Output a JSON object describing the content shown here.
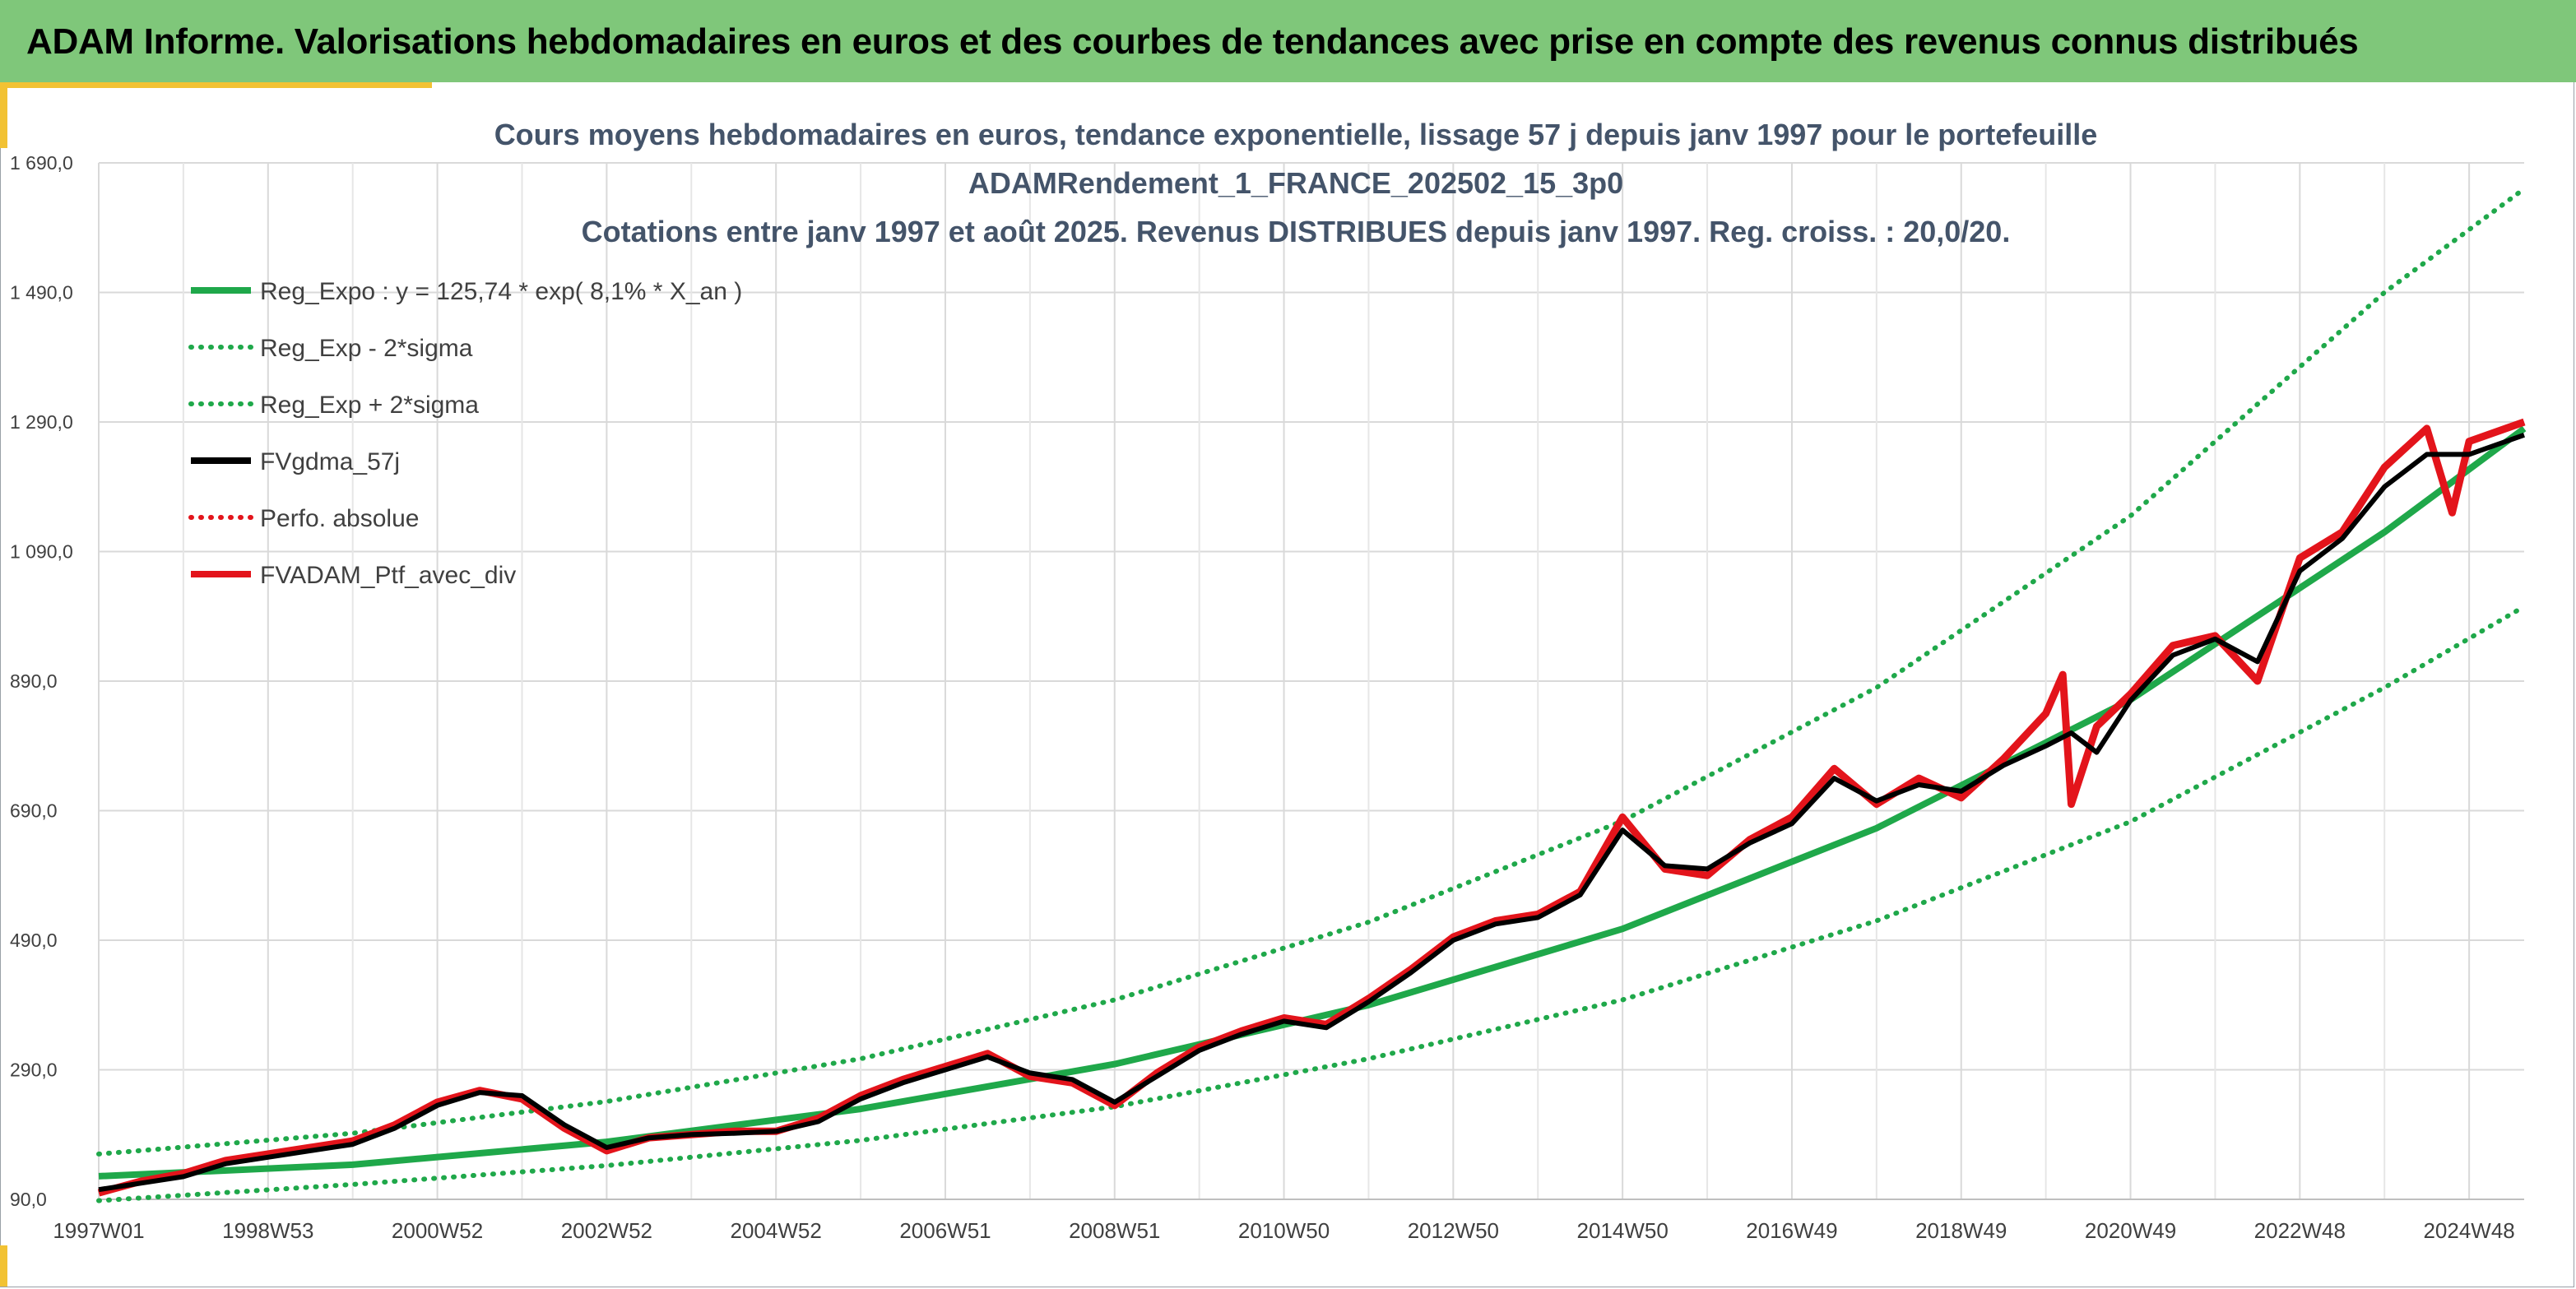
{
  "header": {
    "title": "ADAM Informe. Valorisations hebdomadaires en euros et des courbes de tendances avec prise en compte des revenus connus distribués"
  },
  "colors": {
    "header_bg": "#7fc77a",
    "accent": "#f2c233",
    "trend_green": "#1fa84a",
    "smooth_black": "#000000",
    "portfolio_red": "#e3141b"
  },
  "chart_data": {
    "type": "line",
    "title_lines": [
      "Cours moyens hebdomadaires en euros, tendance exponentielle, lissage 57 j depuis janv 1997 pour le portefeuille",
      "ADAMRendement_1_FRANCE_202502_15_3p0",
      "Cotations entre janv 1997 et août 2025. Revenus DISTRIBUES depuis janv 1997. Reg. croiss. : 20,0/20."
    ],
    "ylim": [
      90,
      1690
    ],
    "y_ticks": [
      "90,0",
      "290,0",
      "490,0",
      "690,0",
      "890,0",
      "1 090,0",
      "1 290,0",
      "1 490,0",
      "1 690,0"
    ],
    "y_tick_values": [
      90,
      290,
      490,
      690,
      890,
      1090,
      1290,
      1490,
      1690
    ],
    "x_range_years": [
      1997.0,
      2025.65
    ],
    "x_ticks": [
      "1997W01",
      "1998W53",
      "2000W52",
      "2002W52",
      "2004W52",
      "2006W51",
      "2008W51",
      "2010W50",
      "2012W50",
      "2014W50",
      "2016W49",
      "2018W49",
      "2020W49",
      "2022W48",
      "2024W48"
    ],
    "x_tick_years": [
      1997.0,
      1999.0,
      2001.0,
      2003.0,
      2005.0,
      2007.0,
      2009.0,
      2011.0,
      2013.0,
      2015.0,
      2017.0,
      2019.0,
      2021.0,
      2023.0,
      2025.0
    ],
    "legend": [
      {
        "label": "Reg_Expo : y = 125,74 * exp( 8,1% *  X_an )",
        "color": "#1fa84a",
        "style": "solid"
      },
      {
        "label": "Reg_Exp - 2*sigma",
        "color": "#1fa84a",
        "style": "dotted"
      },
      {
        "label": "Reg_Exp + 2*sigma",
        "color": "#1fa84a",
        "style": "dotted"
      },
      {
        "label": "FVgdma_57j",
        "color": "#000000",
        "style": "solid"
      },
      {
        "label": "Perfo. absolue",
        "color": "#e3141b",
        "style": "dotted"
      },
      {
        "label": "FVADAM_Ptf_avec_div",
        "color": "#e3141b",
        "style": "solid"
      }
    ],
    "series": [
      {
        "name": "Reg_Expo : y = 125,74 * exp( 8,1% *  X_an )",
        "x": [
          1997.0,
          2000.0,
          2003.0,
          2006.0,
          2009.0,
          2012.0,
          2015.0,
          2018.0,
          2021.0,
          2024.0,
          2025.65
        ],
        "values": [
          125.7,
          143.5,
          178.8,
          229.5,
          298.8,
          389.9,
          507.5,
          663.0,
          861.2,
          1120.0,
          1280.0
        ]
      },
      {
        "name": "Reg_Exp - 2*sigma",
        "x": [
          1997.0,
          2000.0,
          2003.0,
          2006.0,
          2009.0,
          2012.0,
          2015.0,
          2018.0,
          2021.0,
          2024.0,
          2025.65
        ],
        "values": [
          88.0,
          113.0,
          142.0,
          181.0,
          233.0,
          307.0,
          398.0,
          520.0,
          673.0,
          880.0,
          1005.0
        ]
      },
      {
        "name": "Reg_Exp + 2*sigma",
        "x": [
          1997.0,
          2000.0,
          2003.0,
          2006.0,
          2009.0,
          2012.0,
          2015.0,
          2018.0,
          2021.0,
          2024.0,
          2025.65
        ],
        "values": [
          160.0,
          192.0,
          241.0,
          307.0,
          398.0,
          518.0,
          674.0,
          880.0,
          1145.0,
          1490.0,
          1650.0
        ]
      },
      {
        "name": "FVgdma_57j",
        "x": [
          1997.0,
          1997.5,
          1998.0,
          1998.5,
          1999.0,
          1999.5,
          2000.0,
          2000.5,
          2001.0,
          2001.5,
          2002.0,
          2002.5,
          2003.0,
          2003.5,
          2004.0,
          2004.5,
          2005.0,
          2005.5,
          2006.0,
          2006.5,
          2007.0,
          2007.5,
          2008.0,
          2008.5,
          2009.0,
          2009.5,
          2010.0,
          2010.5,
          2011.0,
          2011.5,
          2012.0,
          2012.5,
          2013.0,
          2013.5,
          2014.0,
          2014.5,
          2015.0,
          2015.5,
          2016.0,
          2016.5,
          2017.0,
          2017.5,
          2018.0,
          2018.5,
          2019.0,
          2019.5,
          2020.0,
          2020.3,
          2020.6,
          2021.0,
          2021.5,
          2022.0,
          2022.5,
          2023.0,
          2023.5,
          2024.0,
          2024.5,
          2025.0,
          2025.65
        ],
        "values": [
          105,
          115,
          125,
          145,
          155,
          165,
          175,
          200,
          235,
          255,
          250,
          205,
          170,
          185,
          190,
          192,
          195,
          210,
          245,
          270,
          290,
          310,
          285,
          275,
          240,
          280,
          320,
          345,
          365,
          355,
          395,
          440,
          490,
          515,
          525,
          560,
          660,
          605,
          600,
          640,
          670,
          740,
          705,
          730,
          720,
          760,
          790,
          810,
          780,
          860,
          930,
          955,
          920,
          1060,
          1110,
          1190,
          1240,
          1240,
          1270
        ]
      },
      {
        "name": "FVADAM_Ptf_avec_div",
        "x": [
          1997.0,
          1997.5,
          1998.0,
          1998.5,
          1999.0,
          1999.5,
          2000.0,
          2000.5,
          2001.0,
          2001.5,
          2002.0,
          2002.5,
          2003.0,
          2003.5,
          2004.0,
          2004.5,
          2005.0,
          2005.5,
          2006.0,
          2006.5,
          2007.0,
          2007.5,
          2008.0,
          2008.5,
          2009.0,
          2009.5,
          2010.0,
          2010.5,
          2011.0,
          2011.5,
          2012.0,
          2012.5,
          2013.0,
          2013.5,
          2014.0,
          2014.5,
          2015.0,
          2015.5,
          2016.0,
          2016.5,
          2017.0,
          2017.5,
          2018.0,
          2018.5,
          2019.0,
          2019.5,
          2020.0,
          2020.2,
          2020.3,
          2020.6,
          2021.0,
          2021.5,
          2022.0,
          2022.5,
          2023.0,
          2023.5,
          2024.0,
          2024.5,
          2024.8,
          2025.0,
          2025.65
        ],
        "values": [
          100,
          118,
          130,
          150,
          160,
          170,
          180,
          205,
          240,
          258,
          245,
          200,
          165,
          185,
          190,
          195,
          195,
          215,
          250,
          275,
          295,
          315,
          280,
          270,
          235,
          285,
          325,
          350,
          370,
          360,
          400,
          445,
          495,
          520,
          530,
          565,
          680,
          600,
          590,
          645,
          680,
          755,
          700,
          740,
          710,
          770,
          840,
          900,
          700,
          820,
          870,
          945,
          960,
          890,
          1080,
          1120,
          1220,
          1280,
          1150,
          1260,
          1290
        ]
      }
    ]
  }
}
